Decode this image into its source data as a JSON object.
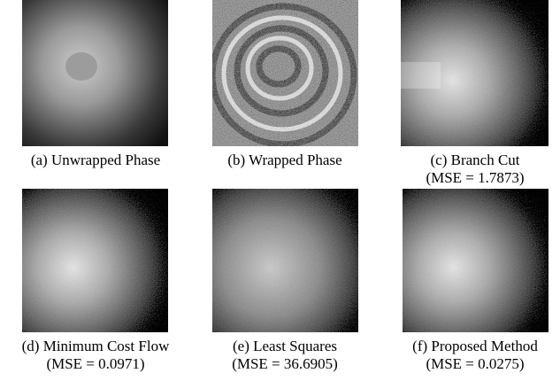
{
  "panels": [
    {
      "caption": "(a) Unwrapped Phase"
    },
    {
      "caption": "(b) Wrapped Phase"
    },
    {
      "caption": "(c) Branch Cut",
      "mse": "(MSE = 1.7873)"
    },
    {
      "caption": "(d) Minimum Cost Flow",
      "mse": "(MSE = 0.0971)"
    },
    {
      "caption": "(e) Least Squares",
      "mse": "(MSE = 36.6905)"
    },
    {
      "caption": "(f) Proposed Method",
      "mse": "(MSE = 0.0275)"
    }
  ]
}
